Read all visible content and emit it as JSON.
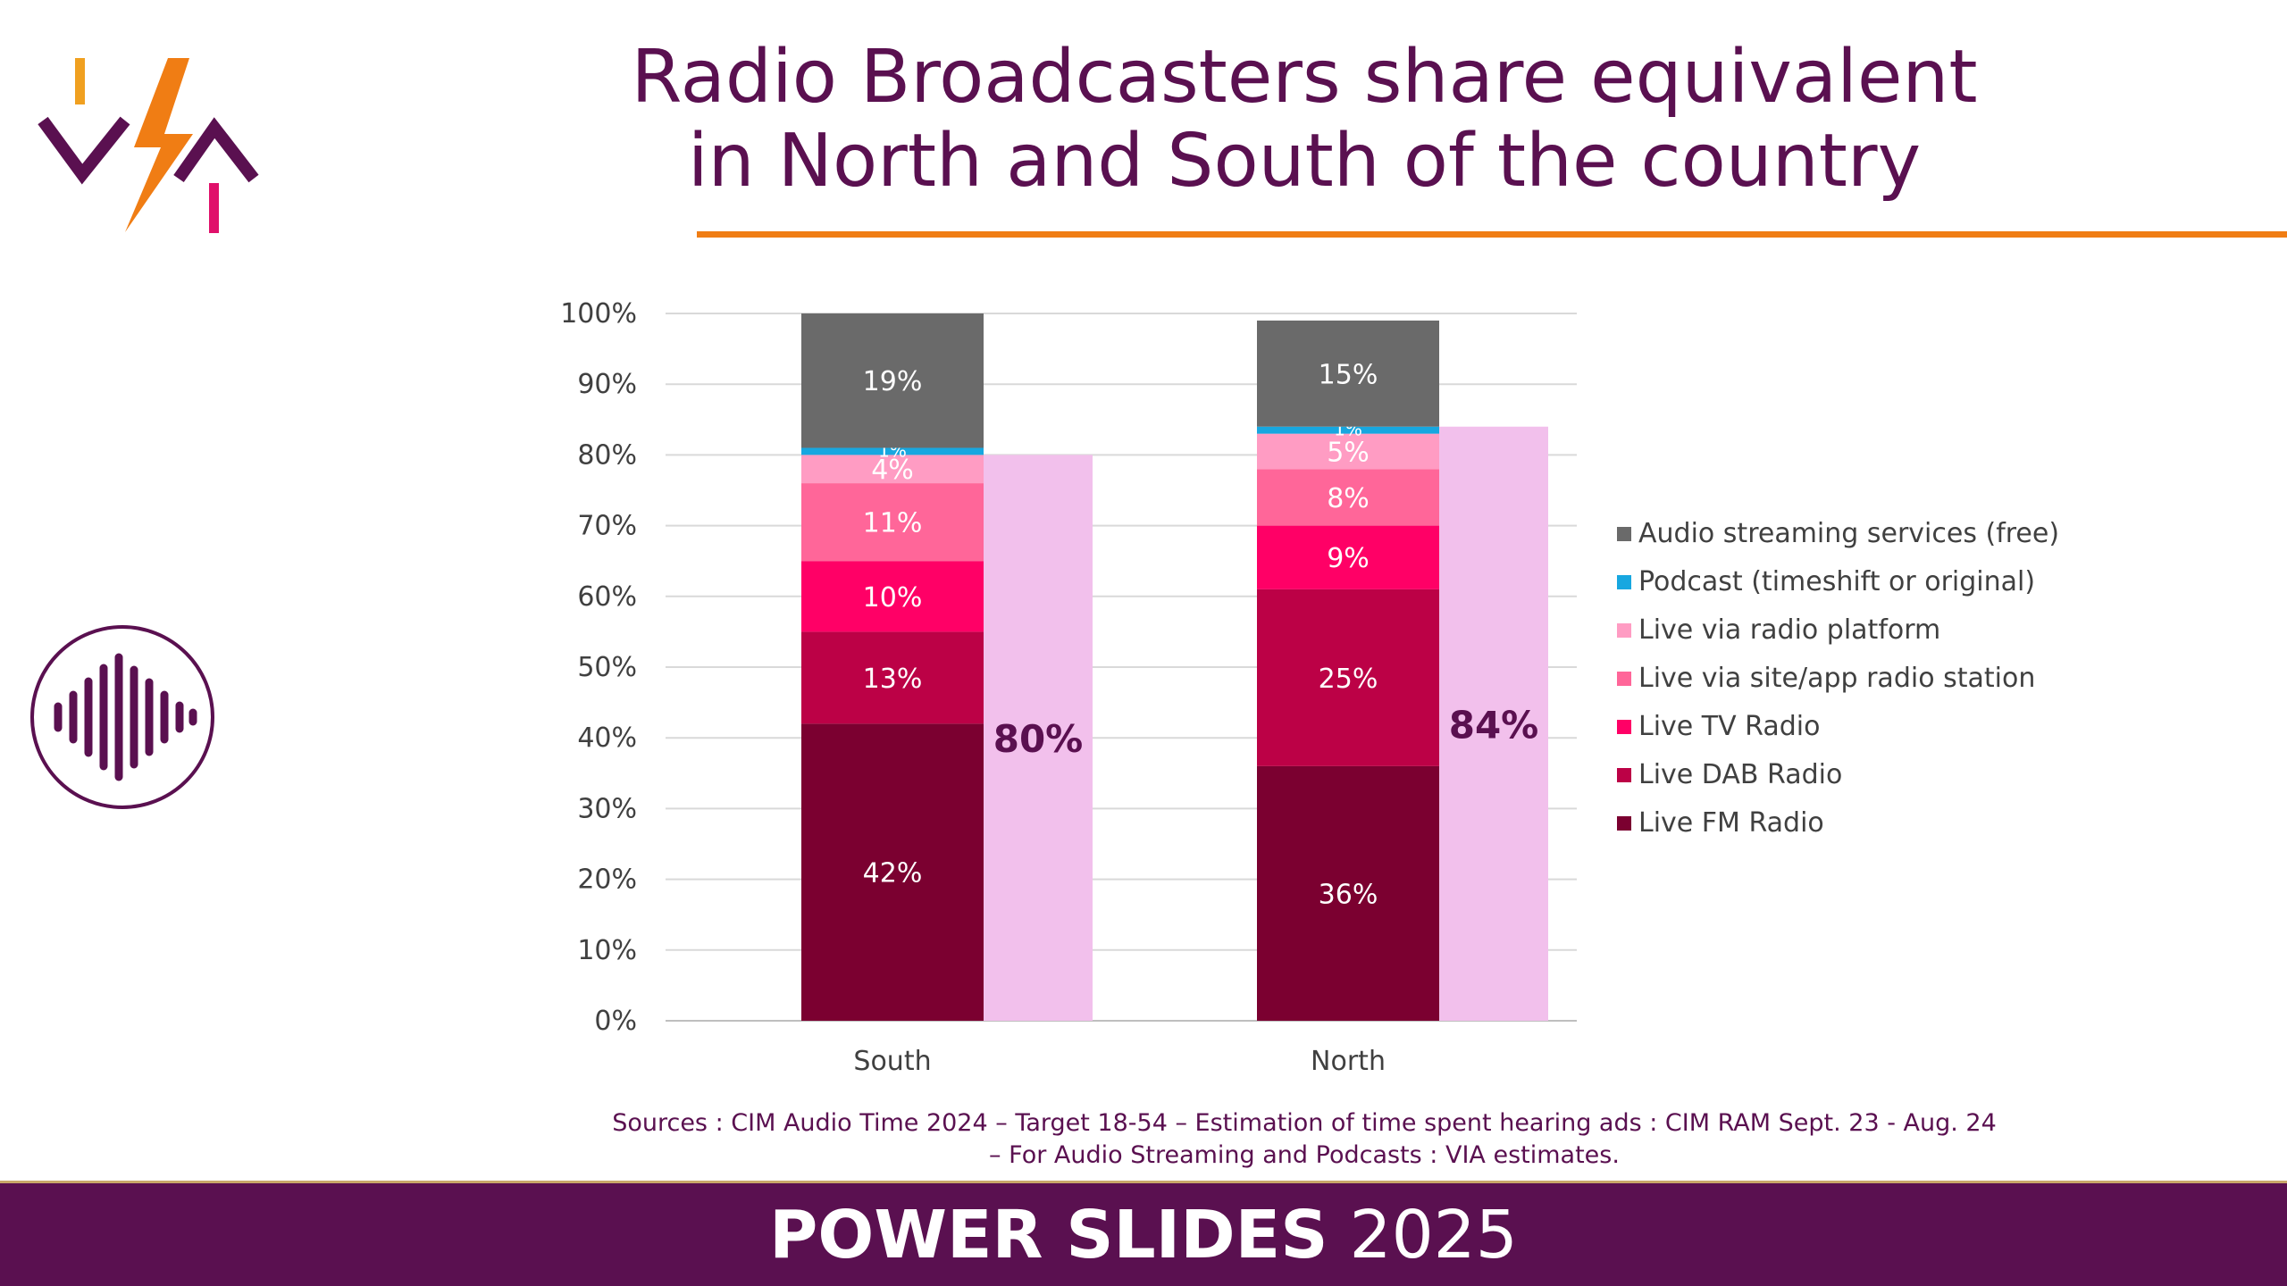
{
  "header": {
    "title_line1": "Radio Broadcasters share equivalent",
    "title_line2": "in North and South of the country"
  },
  "footer": {
    "brand_bold": "POWER SLIDES",
    "brand_year": "2025"
  },
  "sources": {
    "line1": "Sources : CIM Audio Time 2024 – Target 18-54 – Estimation of time spent hearing ads : CIM RAM Sept. 23 - Aug. 24",
    "line2": "– For Audio Streaming and Podcasts : VIA estimates."
  },
  "colors": {
    "title": "#5a1050",
    "accent_rule": "#f07d14",
    "footer_bg": "#5a1050",
    "total_bar": "#f2c0ec"
  },
  "icons": [
    "via-logo-icon",
    "sound-wave-icon"
  ],
  "chart_data": {
    "type": "bar",
    "stacked": true,
    "categories": [
      "South",
      "North"
    ],
    "series": [
      {
        "name": "Live FM Radio",
        "color": "#7b0030",
        "values": [
          42,
          36
        ]
      },
      {
        "name": "Live DAB Radio",
        "color": "#bc0146",
        "values": [
          13,
          25
        ]
      },
      {
        "name": "Live TV Radio",
        "color": "#ff0066",
        "values": [
          10,
          9
        ]
      },
      {
        "name": "Live via site/app radio station",
        "color": "#ff6699",
        "values": [
          11,
          8
        ]
      },
      {
        "name": "Live via radio platform",
        "color": "#ff9cc3",
        "values": [
          4,
          5
        ]
      },
      {
        "name": "Podcast (timeshift or original)",
        "color": "#17a7e0",
        "values": [
          1,
          1
        ]
      },
      {
        "name": "Audio streaming services (free)",
        "color": "#6a6a6a",
        "values": [
          19,
          15
        ]
      }
    ],
    "data_labels": [
      [
        "42%",
        "13%",
        "10%",
        "11%",
        "4%",
        "1%",
        "19%"
      ],
      [
        "36%",
        "25%",
        "9%",
        "8%",
        "5%",
        "1%",
        "15%"
      ]
    ],
    "radio_total": {
      "values": [
        80,
        84
      ],
      "labels": [
        "80%",
        "84%"
      ],
      "color": "#f2c0ec"
    },
    "y_ticks": [
      "0%",
      "10%",
      "20%",
      "30%",
      "40%",
      "50%",
      "60%",
      "70%",
      "80%",
      "90%",
      "100%"
    ],
    "ylim": [
      0,
      100
    ],
    "grid": true,
    "legend_position": "right"
  }
}
